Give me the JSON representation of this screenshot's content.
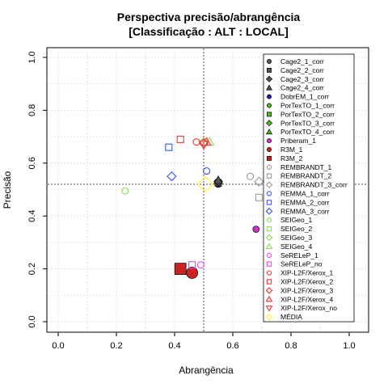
{
  "chart_data": {
    "type": "scatter",
    "title": "Perspectiva precisão/abrangência",
    "subtitle": "[Classificação : ALT : LOCAL]",
    "xlabel": "Abrangência",
    "ylabel": "Precisão",
    "xlim": [
      0.0,
      1.0
    ],
    "ylim": [
      0.0,
      1.0
    ],
    "xticks": [
      "0.0",
      "0.2",
      "0.4",
      "0.6",
      "0.8",
      "1.0"
    ],
    "yticks": [
      "0.0",
      "0.2",
      "0.4",
      "0.6",
      "0.8",
      "1.0"
    ],
    "grid": true,
    "legend_position": "top-right",
    "reference_lines": {
      "x": 0.5,
      "y": 0.52
    },
    "series": [
      {
        "name": "Cage2_1_corr",
        "shape": "circle",
        "color": "#555555",
        "fill": true,
        "x": 0.55,
        "y": 0.52
      },
      {
        "name": "Cage2_2_corr",
        "shape": "square",
        "color": "#555555",
        "fill": true,
        "x": 0.55,
        "y": 0.525
      },
      {
        "name": "Cage2_3_corr",
        "shape": "diamond",
        "color": "#555555",
        "fill": true,
        "x": 0.55,
        "y": 0.53
      },
      {
        "name": "Cage2_4_corr",
        "shape": "triangle",
        "color": "#555555",
        "fill": true,
        "x": 0.55,
        "y": 0.535
      },
      {
        "name": "DobrEM_1_corr",
        "shape": "circle",
        "color": "#1a1aa0",
        "fill": true,
        "x": null,
        "y": null
      },
      {
        "name": "PorTexTO_1_corr",
        "shape": "circle",
        "color": "#55bb22",
        "fill": true,
        "x": null,
        "y": null
      },
      {
        "name": "PorTexTO_2_corr",
        "shape": "square",
        "color": "#55bb22",
        "fill": true,
        "x": null,
        "y": null
      },
      {
        "name": "PorTexTO_3_corr",
        "shape": "diamond",
        "color": "#55bb22",
        "fill": true,
        "x": null,
        "y": null
      },
      {
        "name": "PorTexTO_4_corr",
        "shape": "triangle",
        "color": "#55bb22",
        "fill": true,
        "x": null,
        "y": null
      },
      {
        "name": "Priberam_1",
        "shape": "circle",
        "color": "#cc33cc",
        "fill": true,
        "x": 0.68,
        "y": 0.35
      },
      {
        "name": "R3M_1",
        "shape": "circle",
        "color": "#cc2222",
        "fill": true,
        "x": 0.46,
        "y": 0.185,
        "size": "large"
      },
      {
        "name": "R3M_2",
        "shape": "square",
        "color": "#cc2222",
        "fill": true,
        "x": 0.42,
        "y": 0.2,
        "size": "large"
      },
      {
        "name": "REMBRANDT_1",
        "shape": "circle",
        "color": "#999999",
        "fill": false,
        "x": 0.66,
        "y": 0.55
      },
      {
        "name": "REMBRANDT_2",
        "shape": "square",
        "color": "#999999",
        "fill": false,
        "x": 0.69,
        "y": 0.47
      },
      {
        "name": "REMBRANDT_3_corr",
        "shape": "diamond",
        "color": "#999999",
        "fill": false,
        "x": 0.69,
        "y": 0.53
      },
      {
        "name": "REMMA_1_corr",
        "shape": "circle",
        "color": "#3355ee",
        "fill": false,
        "x": 0.51,
        "y": 0.57
      },
      {
        "name": "REMMA_2_corr",
        "shape": "square",
        "color": "#3355ee",
        "fill": false,
        "x": 0.38,
        "y": 0.66
      },
      {
        "name": "REMMA_3_corr",
        "shape": "diamond",
        "color": "#3355ee",
        "fill": false,
        "x": 0.39,
        "y": 0.55
      },
      {
        "name": "SEIGeo_1",
        "shape": "circle",
        "color": "#88dd55",
        "fill": false,
        "x": 0.23,
        "y": 0.495
      },
      {
        "name": "SEIGeo_2",
        "shape": "square",
        "color": "#88dd55",
        "fill": false,
        "x": null,
        "y": null
      },
      {
        "name": "SEIGeo_3",
        "shape": "diamond",
        "color": "#88dd55",
        "fill": false,
        "x": 0.5,
        "y": 0.68
      },
      {
        "name": "SEIGeo_4",
        "shape": "triangle",
        "color": "#88dd55",
        "fill": false,
        "x": 0.52,
        "y": 0.68
      },
      {
        "name": "SeRELeP_1",
        "shape": "circle",
        "color": "#ee44ee",
        "fill": false,
        "x": 0.49,
        "y": 0.215
      },
      {
        "name": "SeRELeP_no",
        "shape": "square",
        "color": "#ee44ee",
        "fill": false,
        "x": 0.46,
        "y": 0.215
      },
      {
        "name": "XIP-L2F/Xerox_1",
        "shape": "circle",
        "color": "#ee3333",
        "fill": false,
        "x": 0.475,
        "y": 0.68
      },
      {
        "name": "XIP-L2F/Xerox_2",
        "shape": "square",
        "color": "#ee3333",
        "fill": false,
        "x": 0.42,
        "y": 0.69
      },
      {
        "name": "XIP-L2F/Xerox_3",
        "shape": "diamond",
        "color": "#ee3333",
        "fill": false,
        "x": 0.5,
        "y": 0.675
      },
      {
        "name": "XIP-L2F/Xerox_4",
        "shape": "triangle",
        "color": "#ee3333",
        "fill": false,
        "x": 0.51,
        "y": 0.68
      },
      {
        "name": "XIP-L2F/Xerox_no",
        "shape": "triangle-down",
        "color": "#ee3333",
        "fill": false,
        "x": 0.5,
        "y": 0.67
      },
      {
        "name": "MÉDIA",
        "shape": "diamond",
        "color": "#ffee33",
        "fill": false,
        "x": 0.505,
        "y": 0.52,
        "size": "large"
      }
    ]
  }
}
